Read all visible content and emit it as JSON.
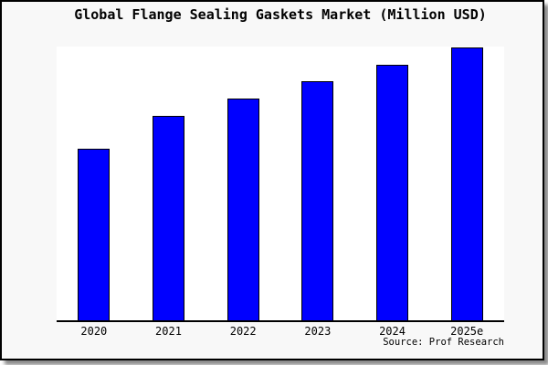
{
  "chart": {
    "title": "Global Flange Sealing Gaskets Market (Million USD)",
    "source": "Source: Prof Research"
  },
  "chart_data": {
    "type": "bar",
    "title": "Global Flange Sealing Gaskets Market (Million USD)",
    "categories": [
      "2020",
      "2021",
      "2022",
      "2023",
      "2024",
      "2025e"
    ],
    "values_pct_of_max": [
      62.8,
      75.1,
      81.4,
      87.7,
      93.7,
      100
    ],
    "bar_heights_pct_of_plot": [
      62.6,
      74.8,
      81.1,
      87.4,
      93.4,
      99.7
    ],
    "ylim": [
      0,
      100
    ],
    "xlabel": "",
    "ylabel": "",
    "y_axis_labels_visible": false,
    "gridlines": false,
    "legend_position": "none",
    "bar_color": "#0000ff",
    "bar_border_color": "#000000",
    "plot_bg": "#ffffff",
    "figure_bg": "#f8f8f8",
    "frame_color": "#000000",
    "source": "Source: Prof Research"
  }
}
